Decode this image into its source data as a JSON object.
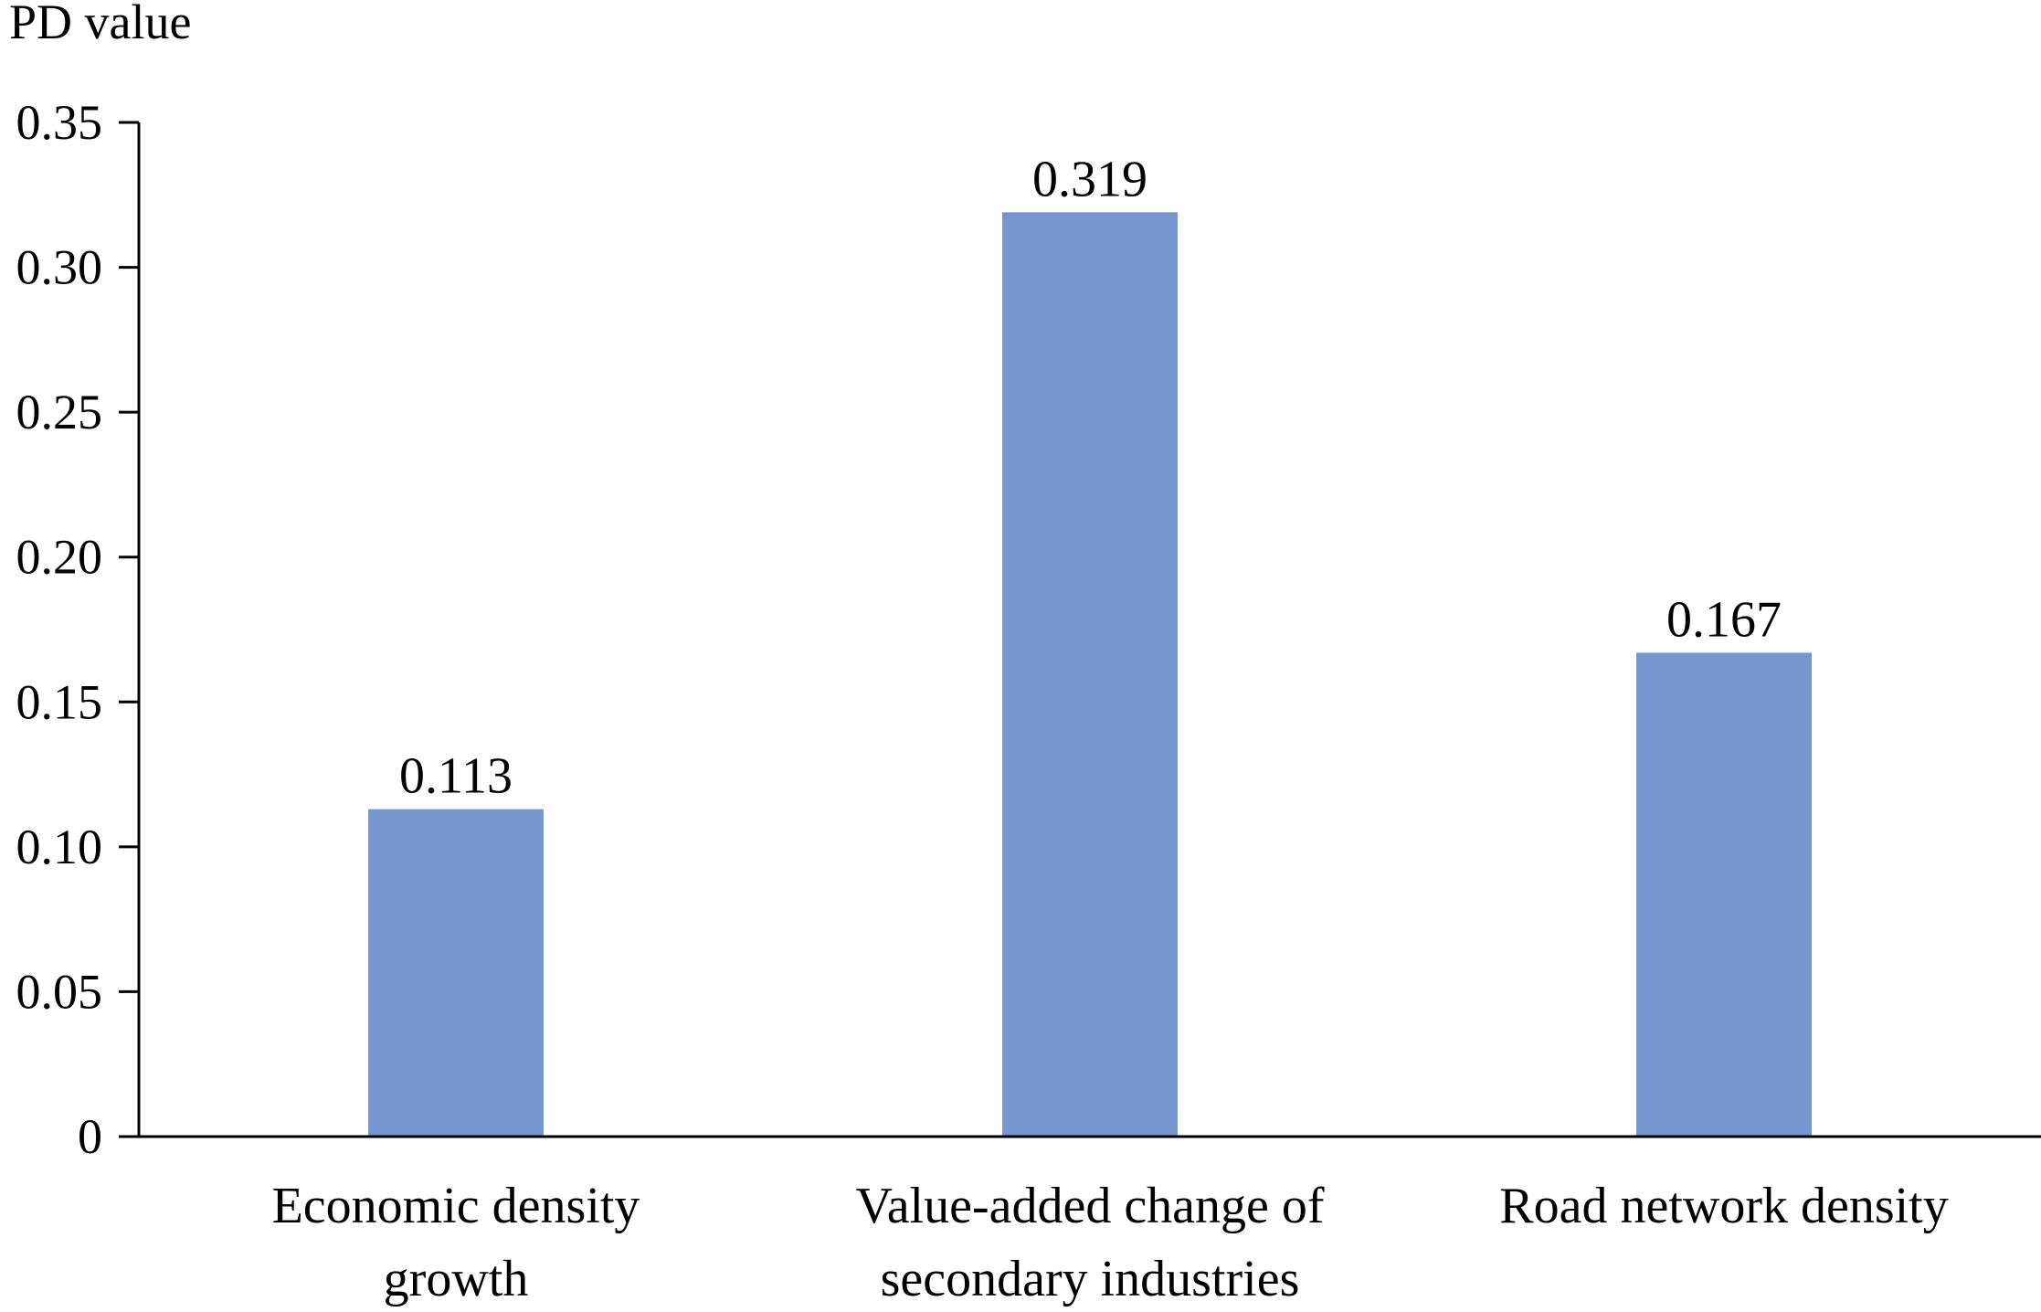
{
  "chart_data": {
    "type": "bar",
    "title": "",
    "xlabel": "",
    "ylabel": "PD value",
    "categories": [
      [
        "Economic density",
        "growth"
      ],
      [
        "Value-added change of",
        "secondary industries"
      ],
      [
        "Road network density"
      ]
    ],
    "values": [
      0.113,
      0.319,
      0.167
    ],
    "data_labels": [
      "0.113",
      "0.319",
      "0.167"
    ],
    "ylim": [
      0,
      0.35
    ],
    "yticks": [
      0,
      0.05,
      0.1,
      0.15,
      0.2,
      0.25,
      0.3,
      0.35
    ],
    "ytick_labels": [
      "0",
      "0.05",
      "0.10",
      "0.15",
      "0.20",
      "0.25",
      "0.30",
      "0.35"
    ],
    "grid": false,
    "legend": "none",
    "bar_color": "#7596CE",
    "axis_color": "#000000"
  }
}
